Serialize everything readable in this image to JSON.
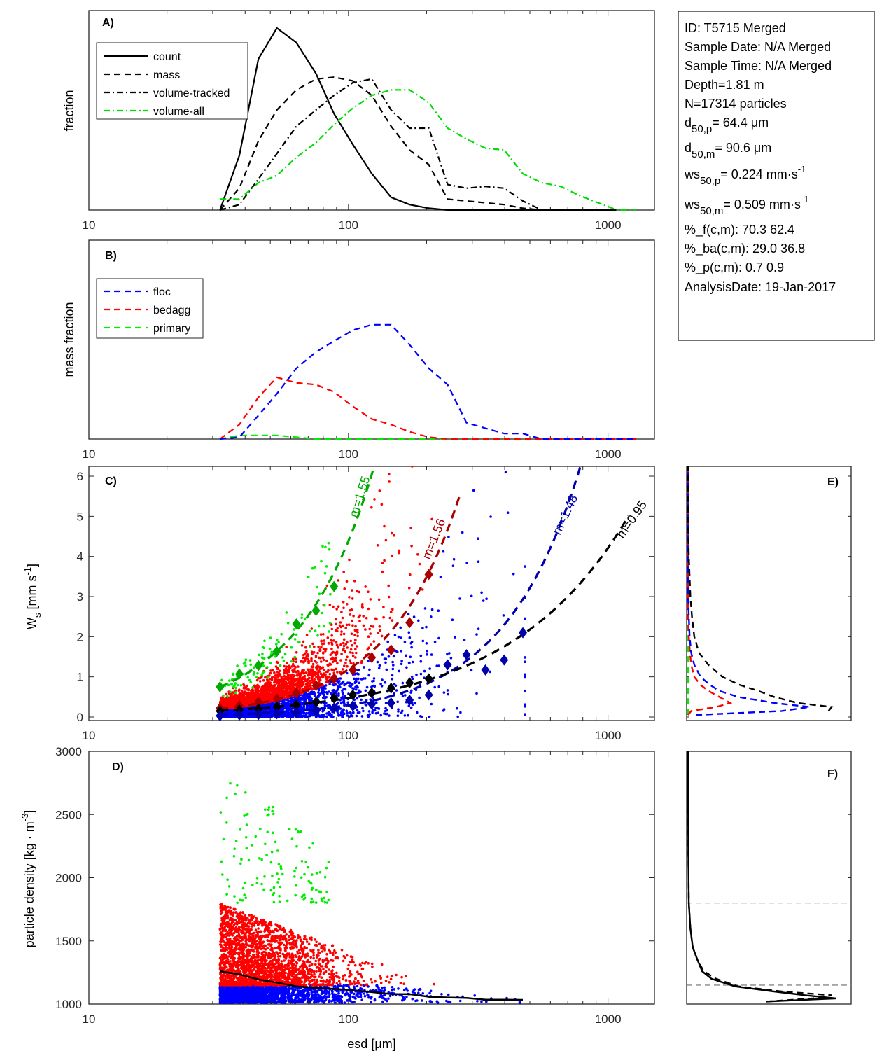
{
  "info_box": {
    "lines": [
      {
        "text": "ID: T5715 Merged"
      },
      {
        "text": "Sample Date: N/A Merged"
      },
      {
        "text": "Sample Time: N/A Merged"
      },
      {
        "text": "Depth=1.81 m"
      },
      {
        "text": "N=17314 particles"
      },
      {
        "base": "d",
        "sub": "50,p",
        "rest": "=  64.4 μm"
      },
      {
        "base": "d",
        "sub": "50,m",
        "rest": "=  90.6 μm"
      },
      {
        "base": "ws",
        "sub": "50,p",
        "rest": "= 0.224 mm·s",
        "sup": "-1"
      },
      {
        "base": "ws",
        "sub": "50,m",
        "rest": "= 0.509 mm·s",
        "sup": "-1"
      },
      {
        "text": "%_f(c,m): 70.3 62.4"
      },
      {
        "text": "%_ba(c,m): 29.0 36.8"
      },
      {
        "text": "%_p(c,m): 0.7 0.9"
      },
      {
        "text": "AnalysisDate: 19-Jan-2017"
      }
    ]
  },
  "chart_data": [
    {
      "panel": "A",
      "type": "line",
      "tag": "A)",
      "xlabel": "",
      "ylabel": "fraction",
      "xscale": "log",
      "xlim": [
        10,
        1510
      ],
      "ylim": [
        0,
        1
      ],
      "xticks": [
        10,
        100,
        1000
      ],
      "xtick_labels": [
        "10",
        "100",
        "1000"
      ],
      "legend_position": "top-left",
      "x": [
        32,
        38,
        45,
        53,
        63,
        75,
        88,
        104,
        123,
        146,
        172,
        204,
        241,
        285,
        337,
        398,
        470,
        556,
        657,
        776,
        917,
        1084,
        1281
      ],
      "series": [
        {
          "name": "count",
          "color": "#000000",
          "dash": "solid",
          "values": [
            0.0,
            0.3,
            0.83,
            1.0,
            0.92,
            0.75,
            0.53,
            0.36,
            0.2,
            0.07,
            0.03,
            0.01,
            0.0,
            0.0,
            0.0,
            0.0,
            0.0,
            0.0,
            0.0,
            0.0,
            0.0,
            0.0,
            null
          ]
        },
        {
          "name": "mass",
          "color": "#000000",
          "dash": "dashed",
          "values": [
            0.0,
            0.12,
            0.38,
            0.55,
            0.66,
            0.72,
            0.73,
            0.71,
            0.63,
            0.46,
            0.33,
            0.25,
            0.06,
            0.05,
            0.04,
            0.03,
            0.01,
            0.0,
            0.0,
            0.0,
            0.0,
            0.0,
            null
          ]
        },
        {
          "name": "volume-tracked",
          "color": "#000000",
          "dash": "dashdot",
          "values": [
            0.0,
            0.03,
            0.17,
            0.31,
            0.46,
            0.55,
            0.63,
            0.7,
            0.72,
            0.55,
            0.45,
            0.45,
            0.14,
            0.12,
            0.13,
            0.12,
            0.05,
            0.0,
            0.0,
            0.0,
            0.0,
            0.0,
            null
          ]
        },
        {
          "name": "volume-all",
          "color": "#00dd00",
          "dash": "dashdot",
          "values": [
            0.06,
            0.06,
            0.15,
            0.19,
            0.29,
            0.37,
            0.47,
            0.56,
            0.63,
            0.66,
            0.66,
            0.59,
            0.45,
            0.39,
            0.34,
            0.33,
            0.2,
            0.15,
            0.13,
            0.08,
            0.04,
            0.0,
            0.0
          ]
        }
      ]
    },
    {
      "panel": "B",
      "type": "line",
      "tag": "B)",
      "xlabel": "",
      "ylabel": "mass fraction",
      "xscale": "log",
      "xlim": [
        10,
        1510
      ],
      "ylim": [
        0,
        1
      ],
      "xticks": [
        10,
        100,
        1000
      ],
      "xtick_labels": [
        "10",
        "100",
        "1000"
      ],
      "legend_position": "top-left",
      "x": [
        32,
        38,
        45,
        53,
        63,
        75,
        88,
        104,
        123,
        146,
        172,
        204,
        241,
        285,
        337,
        398,
        470,
        556,
        657,
        776,
        917,
        1084,
        1281
      ],
      "series": [
        {
          "name": "floc",
          "color": "#0000ff",
          "dash": "dashed",
          "values": [
            0.0,
            0.01,
            0.13,
            0.25,
            0.39,
            0.48,
            0.54,
            0.6,
            0.63,
            0.63,
            0.52,
            0.39,
            0.3,
            0.09,
            0.06,
            0.03,
            0.03,
            0.0,
            0.0,
            0.0,
            0.0,
            0.0,
            0.0
          ]
        },
        {
          "name": "bedagg",
          "color": "#ff0000",
          "dash": "dashed",
          "values": [
            0.0,
            0.08,
            0.23,
            0.34,
            0.31,
            0.3,
            0.26,
            0.18,
            0.11,
            0.08,
            0.04,
            0.01,
            0.0,
            0.0,
            0.0,
            0.0,
            0.0,
            0.0,
            0.0,
            0.0,
            0.0,
            0.0,
            0.0
          ]
        },
        {
          "name": "primary",
          "color": "#00ee00",
          "dash": "dashed",
          "values": [
            0.0,
            0.02,
            0.02,
            0.02,
            0.01,
            0.0,
            0.0,
            0.0,
            0.0,
            0.0,
            0.0,
            0.0,
            0.0,
            0.0,
            0.0,
            0.0,
            0.0,
            0.0,
            0.0,
            0.0,
            0.0,
            0.0,
            0.0
          ]
        }
      ]
    },
    {
      "panel": "C",
      "type": "scatter",
      "tag": "C)",
      "xlabel": "",
      "ylabel": "W_s [mm s^-1]",
      "xscale": "log",
      "xlim": [
        10,
        1510
      ],
      "ylim": [
        -0.1,
        6.25
      ],
      "xticks": [
        10,
        100,
        1000
      ],
      "xtick_labels": [
        "10",
        "100",
        "1000"
      ],
      "yticks": [
        0,
        1,
        2,
        3,
        4,
        5,
        6
      ],
      "ytick_labels": [
        "0",
        "1",
        "2",
        "3",
        "4",
        "5",
        "6"
      ],
      "scatter_groups": [
        {
          "name": "floc",
          "color": "#0000ff"
        },
        {
          "name": "bedagg",
          "color": "#ff0000"
        },
        {
          "name": "primary",
          "color": "#00ee00"
        }
      ],
      "binned_means": [
        {
          "name": "primary",
          "color": "#00aa00",
          "x": [
            32,
            38,
            45,
            53,
            63,
            75,
            88
          ],
          "y": [
            0.75,
            1.07,
            1.28,
            1.63,
            2.32,
            2.65,
            3.25
          ]
        },
        {
          "name": "bedagg",
          "color": "#aa0000",
          "x": [
            32,
            38,
            45,
            53,
            63,
            75,
            88,
            104,
            123,
            146,
            172,
            204
          ],
          "y": [
            0.22,
            0.28,
            0.37,
            0.45,
            0.6,
            0.78,
            0.95,
            1.17,
            1.48,
            1.67,
            2.35,
            3.55
          ]
        },
        {
          "name": "all",
          "color": "#000000",
          "x": [
            32,
            38,
            45,
            53,
            63,
            75,
            88,
            104,
            123,
            146,
            172,
            204
          ],
          "y": [
            0.15,
            0.18,
            0.2,
            0.25,
            0.3,
            0.37,
            0.47,
            0.55,
            0.6,
            0.72,
            0.85,
            0.95
          ]
        },
        {
          "name": "floc",
          "color": "#0000aa",
          "x": [
            32,
            38,
            45,
            53,
            63,
            75,
            88,
            104,
            123,
            146,
            172,
            204,
            241,
            285,
            337,
            398,
            470
          ],
          "y": [
            0.03,
            0.05,
            0.06,
            0.08,
            0.1,
            0.15,
            0.22,
            0.28,
            0.32,
            0.35,
            0.42,
            0.55,
            1.3,
            1.55,
            1.17,
            1.42,
            2.1
          ]
        }
      ],
      "fits": [
        {
          "name": "primary",
          "label": "m=1.55",
          "color": "#00aa00",
          "m": 1.55,
          "x_range": [
            32,
            125
          ],
          "ws_at_32": 0.75
        },
        {
          "name": "bedagg",
          "label": "m=1.56",
          "color": "#aa0000",
          "m": 1.56,
          "x_range": [
            32,
            270
          ],
          "ws_at_32": 0.2
        },
        {
          "name": "floc",
          "label": "m=1.48",
          "color": "#0000aa",
          "m": 1.48,
          "x_range": [
            32,
            820
          ],
          "ws_at_32": 0.055
        },
        {
          "name": "all",
          "label": "m=0.95",
          "color": "#000000",
          "m": 0.95,
          "x_range": [
            32,
            1200
          ],
          "ws_at_32": 0.16
        }
      ]
    },
    {
      "panel": "D",
      "type": "scatter",
      "tag": "D)",
      "xlabel": "esd [μm]",
      "ylabel": "particle density [kg · m^-3]",
      "xscale": "log",
      "xlim": [
        10,
        1510
      ],
      "ylim": [
        1000,
        3000
      ],
      "xticks": [
        10,
        100,
        1000
      ],
      "xtick_labels": [
        "10",
        "100",
        "1000"
      ],
      "yticks": [
        1000,
        1500,
        2000,
        2500,
        3000
      ],
      "ytick_labels": [
        "1000",
        "1500",
        "2000",
        "2500",
        "3000"
      ],
      "scatter_groups": [
        {
          "name": "floc",
          "color": "#0000ff",
          "density_range": [
            1000,
            1150
          ]
        },
        {
          "name": "bedagg",
          "color": "#ff0000",
          "density_range": [
            1150,
            1800
          ]
        },
        {
          "name": "primary",
          "color": "#00ee00",
          "density_range": [
            1800,
            2900
          ]
        }
      ],
      "mean_line": {
        "color": "#000000",
        "x": [
          32,
          38,
          45,
          53,
          63,
          75,
          88,
          104,
          123,
          146,
          172,
          204,
          241,
          285,
          337,
          398,
          470
        ],
        "y": [
          1260,
          1235,
          1195,
          1170,
          1140,
          1128,
          1120,
          1110,
          1095,
          1080,
          1078,
          1058,
          1052,
          1048,
          1035,
          1035,
          1033
        ]
      }
    },
    {
      "panel": "E",
      "type": "line",
      "tag": "E)",
      "xlabel": "",
      "ylabel": "",
      "ylim": [
        -0.1,
        6.25
      ],
      "yticks": [
        0,
        1,
        2,
        3,
        4,
        5,
        6
      ],
      "xlim": [
        0,
        1
      ],
      "y": [
        0.05,
        0.15,
        0.25,
        0.35,
        0.5,
        0.65,
        0.8,
        1.0,
        1.3,
        1.6,
        2.0,
        2.5,
        3.0,
        3.5,
        4.0,
        5.0,
        6.25
      ],
      "series": [
        {
          "name": "all",
          "color": "#000000",
          "dash": "dashed",
          "values": [
            null,
            0.9,
            0.92,
            0.7,
            0.55,
            0.45,
            0.33,
            0.22,
            0.13,
            0.07,
            0.04,
            0.025,
            0.015,
            0.01,
            0.005,
            0.0,
            0.0
          ]
        },
        {
          "name": "floc",
          "color": "#0000ff",
          "dash": "dashed",
          "values": [
            0.05,
            0.6,
            0.78,
            0.55,
            0.32,
            0.2,
            0.14,
            0.08,
            0.04,
            0.02,
            0.01,
            0.005,
            0.0,
            0.0,
            0.0,
            0.0,
            0.0
          ]
        },
        {
          "name": "bedagg",
          "color": "#ff0000",
          "dash": "dashed",
          "values": [
            0.0,
            0.02,
            0.18,
            0.27,
            0.2,
            0.13,
            0.08,
            0.04,
            0.02,
            0.012,
            0.005,
            0.0,
            0.0,
            0.0,
            0.0,
            0.0,
            0.0
          ]
        },
        {
          "name": "primary",
          "color": "#00ee00",
          "dash": "dashed",
          "values": [
            0.0,
            0.0,
            0.0,
            0.0,
            0.0,
            0.0,
            0.0,
            0.0,
            0.0,
            0.0,
            0.0,
            0.0,
            0.0,
            0.0,
            0.0,
            0.0,
            0.0
          ]
        }
      ]
    },
    {
      "panel": "F",
      "type": "line",
      "tag": "F)",
      "xlabel": "",
      "ylabel": "",
      "ylim": [
        1000,
        3000
      ],
      "yticks": [
        1000,
        1500,
        2000,
        2500,
        3000
      ],
      "xlim": [
        0,
        1
      ],
      "reference_lines": [
        1800,
        1150
      ],
      "reference_color": "#888888",
      "y": [
        1020,
        1045,
        1070,
        1100,
        1140,
        1200,
        1260,
        1350,
        1450,
        1600,
        1800,
        2200,
        3000
      ],
      "series": [
        {
          "name": "count",
          "color": "#000000",
          "dash": "solid",
          "values": [
            0.5,
            0.95,
            0.75,
            0.55,
            0.3,
            0.15,
            0.09,
            0.06,
            0.03,
            0.015,
            0.005,
            0.002,
            0.0
          ]
        },
        {
          "name": "mass",
          "color": "#000000",
          "dash": "dashed",
          "values": [
            0.5,
            0.8,
            0.92,
            0.6,
            0.32,
            0.18,
            0.1,
            0.06,
            0.03,
            0.015,
            0.005,
            0.002,
            0.0
          ]
        }
      ]
    }
  ]
}
